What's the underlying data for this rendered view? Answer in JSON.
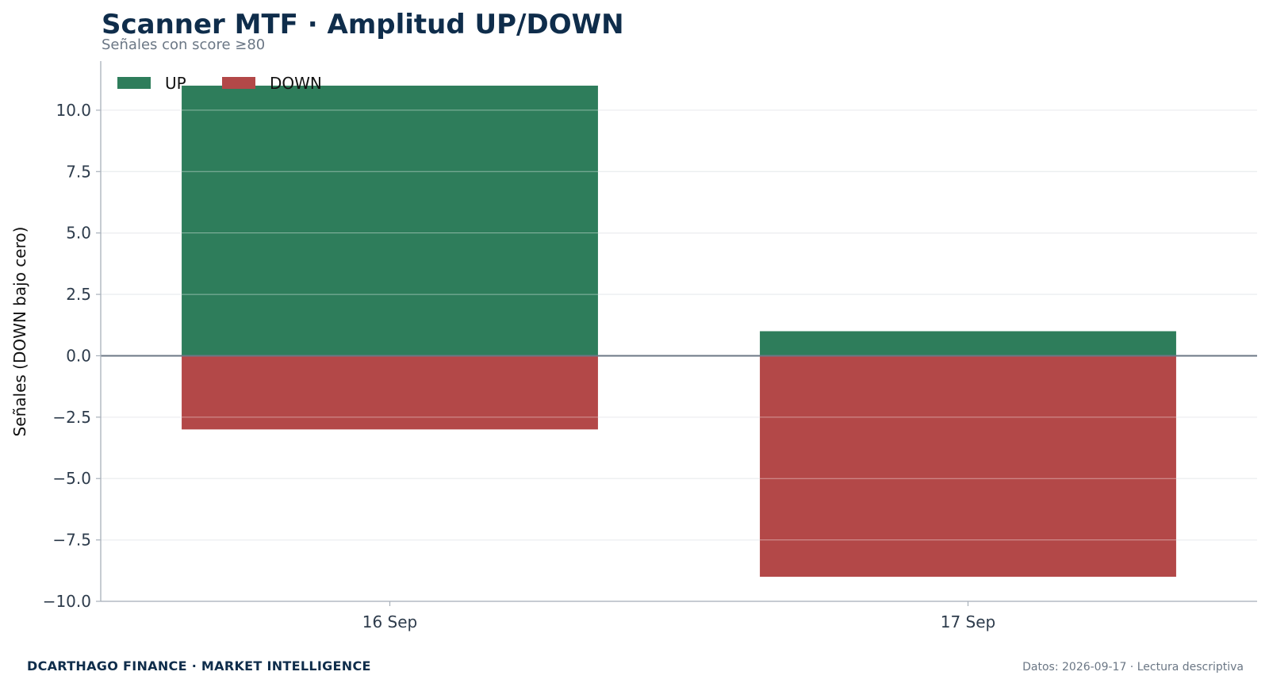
{
  "colors": {
    "up": "#2e7d5b",
    "down": "#b34848",
    "grid": "#e3e6ea",
    "zero_line": "#6b7785",
    "axis": "#a8b0ba",
    "title": "#0f2d4b"
  },
  "chart_data": {
    "type": "bar",
    "stacked": "diverging",
    "title": "Scanner MTF · Amplitud UP/DOWN",
    "subtitle": "Señales con score ≥80",
    "xlabel": "",
    "ylabel": "Señales (DOWN bajo cero)",
    "ylim": [
      -10,
      12
    ],
    "yticks": [
      10.0,
      7.5,
      5.0,
      2.5,
      0.0,
      -2.5,
      -5.0,
      -7.5,
      -10.0
    ],
    "ytick_labels": [
      "10.0",
      "7.5",
      "5.0",
      "2.5",
      "0.0",
      "−2.5",
      "−5.0",
      "−7.5",
      "−10.0"
    ],
    "categories": [
      "16 Sep",
      "17 Sep"
    ],
    "series": [
      {
        "name": "UP",
        "values": [
          11,
          1
        ]
      },
      {
        "name": "DOWN",
        "values": [
          -3,
          -9
        ]
      }
    ],
    "grid": true,
    "legend": {
      "position": "top-left",
      "entries": [
        "UP",
        "DOWN"
      ]
    }
  },
  "footer": {
    "brand": "DCARTHAGO FINANCE · MARKET INTELLIGENCE",
    "note": "Datos: 2026-09-17 · Lectura descriptiva"
  }
}
